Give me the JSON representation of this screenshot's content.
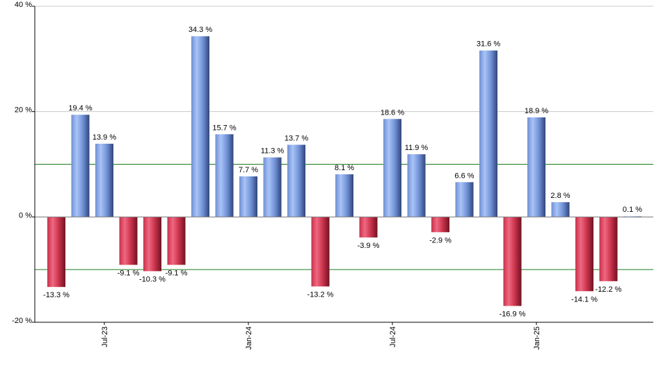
{
  "chart_data": {
    "type": "bar",
    "value_suffix": " %",
    "values": [
      -13.3,
      19.4,
      13.9,
      -9.1,
      -10.3,
      -9.1,
      34.3,
      15.7,
      7.7,
      11.3,
      13.7,
      -13.2,
      8.1,
      -3.9,
      18.6,
      11.9,
      -2.9,
      6.6,
      31.6,
      -16.9,
      18.9,
      2.8,
      -14.1,
      -12.2,
      0.1
    ],
    "labels": [
      "-13.3 %",
      "19.4 %",
      "13.9 %",
      "-9.1 %",
      "-10.3 %",
      "-9.1 %",
      "34.3 %",
      "15.7 %",
      "7.7 %",
      "11.3 %",
      "13.7 %",
      "-13.2 %",
      "8.1 %",
      "-3.9 %",
      "18.6 %",
      "11.9 %",
      "-2.9 %",
      "6.6 %",
      "31.6 %",
      "-16.9 %",
      "18.9 %",
      "2.8 %",
      "-14.1 %",
      "-12.2 %",
      "0.1 %"
    ],
    "x_ticks": [
      {
        "label": "Jul-23",
        "index": 2
      },
      {
        "label": "Jan-24",
        "index": 8
      },
      {
        "label": "Jul-24",
        "index": 14
      },
      {
        "label": "Jan-25",
        "index": 20
      }
    ],
    "y_ticks": [
      {
        "value": 40,
        "label": "40 %"
      },
      {
        "value": 20,
        "label": "20 %"
      },
      {
        "value": 0,
        "label": "0 %"
      },
      {
        "value": -20,
        "label": "-20 %"
      }
    ],
    "ylim": [
      -20,
      40
    ],
    "reference_lines": [
      10,
      -10
    ],
    "grid": true,
    "colors": {
      "positive": "#7a9fe0",
      "negative": "#c8344e",
      "grid": "#c8c8c8",
      "reference_line": "#1a7a1a",
      "axis": "#000000"
    }
  }
}
